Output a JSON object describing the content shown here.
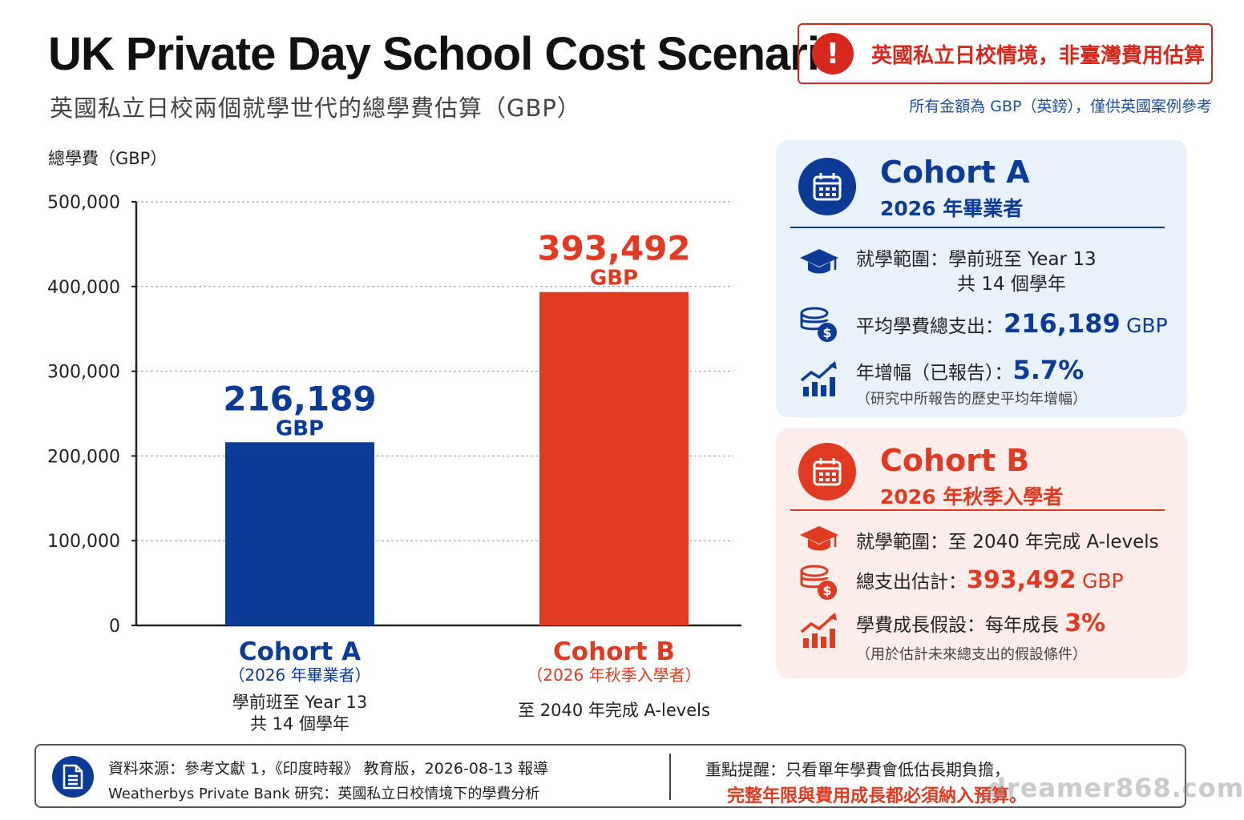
{
  "header": {
    "title": "UK Private Day School Cost Scenario",
    "subtitle": "英國私立日校兩個就學世代的總學費估算（GBP）",
    "warning": "英國私立日校情境，非臺灣費用估算",
    "warning_icon": "exclamation-icon",
    "note": "所有金額為 GBP（英鎊），僅供英國案例參考"
  },
  "chart_data": {
    "type": "bar",
    "title": "",
    "ylabel": "總學費（GBP）",
    "xlabel": "",
    "ylim": [
      0,
      500000
    ],
    "yticks": [
      0,
      100000,
      200000,
      300000,
      400000,
      500000
    ],
    "ytick_labels": [
      "0",
      "100,000",
      "200,000",
      "300,000",
      "400,000",
      "500,000"
    ],
    "grid": true,
    "categories": [
      "Cohort A",
      "Cohort B"
    ],
    "category_subtitles": [
      "（2026 年畢業者）",
      "（2026 年秋季入學者）"
    ],
    "category_notes": [
      [
        "學前班至 Year 13",
        "共 14 個學年"
      ],
      [
        "至 2040 年完成 A-levels"
      ]
    ],
    "values": [
      216189,
      393492
    ],
    "value_labels": [
      "216,189",
      "393,492"
    ],
    "value_unit": "GBP",
    "colors": [
      "#0b3a97",
      "#e03a22"
    ]
  },
  "panels": {
    "cohort_a": {
      "title": "Cohort A",
      "subtitle": "2026 年畢業者",
      "scope_label": "就學範圍：學前班至 Year 13",
      "scope_line2": "共 14 個學年",
      "spend_label": "平均學費總支出：",
      "spend_value": "216,189",
      "spend_unit": "GBP",
      "growth_label": "年增幅（已報告）：",
      "growth_value": "5.7%",
      "growth_note": "（研究中所報告的歷史平均年增幅）",
      "color": "#0b3a97"
    },
    "cohort_b": {
      "title": "Cohort B",
      "subtitle": "2026 年秋季入學者",
      "scope_label": "就學範圍：至 2040 年完成 A-levels",
      "spend_label": "總支出估計：",
      "spend_value": "393,492",
      "spend_unit": "GBP",
      "growth_label": "學費成長假設：每年成長",
      "growth_value": "3%",
      "growth_note": "（用於估計未來總支出的假設條件）",
      "color": "#e03a22"
    }
  },
  "footer": {
    "source_line1": "資料來源：參考文獻 1，《印度時報》 教育版，2026-08-13 報導",
    "source_line2": "Weatherbys Private Bank 研究：英國私立日校情境下的學費分析",
    "tip_line1": "重點提醒：只看單年學費會低估長期負擔，",
    "tip_line2": "完整年限與費用成長都必須納入預算。",
    "icon": "document-icon"
  },
  "watermark": "dreamer868.com"
}
